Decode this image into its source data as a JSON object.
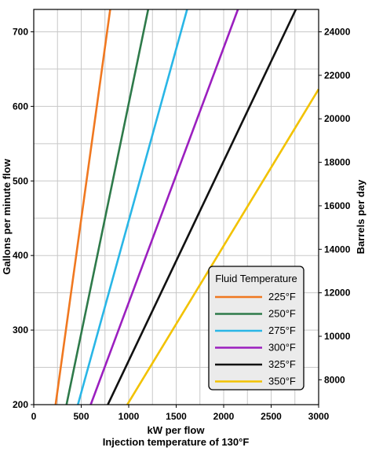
{
  "chart_data": {
    "type": "line",
    "xlabel": "kW per flow",
    "subtitle": "Injection temperature of 130°F",
    "ylabel_left": "Gallons per minute flow",
    "ylabel_right": "Barrels per day",
    "xlim": [
      0,
      3000
    ],
    "ylim_left": [
      200,
      730
    ],
    "ylim_right": [
      6857,
      25029
    ],
    "x_ticks": [
      0,
      500,
      1000,
      1500,
      2000,
      2500,
      3000
    ],
    "y_ticks_left": [
      200,
      300,
      400,
      500,
      600,
      700
    ],
    "y_ticks_right": [
      8000,
      10000,
      12000,
      14000,
      16000,
      18000,
      20000,
      22000,
      24000
    ],
    "grid": true,
    "legend": {
      "title": "Fluid Temperature",
      "placement": "bottom-right"
    },
    "series": [
      {
        "name": "225°F",
        "color": "#f07820",
        "x": [
          230,
          805
        ],
        "y": [
          200,
          730
        ]
      },
      {
        "name": "250°F",
        "color": "#2e7a4a",
        "x": [
          345,
          1205
        ],
        "y": [
          200,
          730
        ]
      },
      {
        "name": "275°F",
        "color": "#29b6e6",
        "x": [
          465,
          1615
        ],
        "y": [
          200,
          730
        ]
      },
      {
        "name": "300°F",
        "color": "#9b1fbf",
        "x": [
          600,
          2150
        ],
        "y": [
          200,
          730
        ]
      },
      {
        "name": "325°F",
        "color": "#111111",
        "x": [
          780,
          2760
        ],
        "y": [
          200,
          730
        ]
      },
      {
        "name": "350°F",
        "color": "#f2c200",
        "x": [
          985,
          3000
        ],
        "y": [
          200,
          623
        ]
      }
    ]
  }
}
